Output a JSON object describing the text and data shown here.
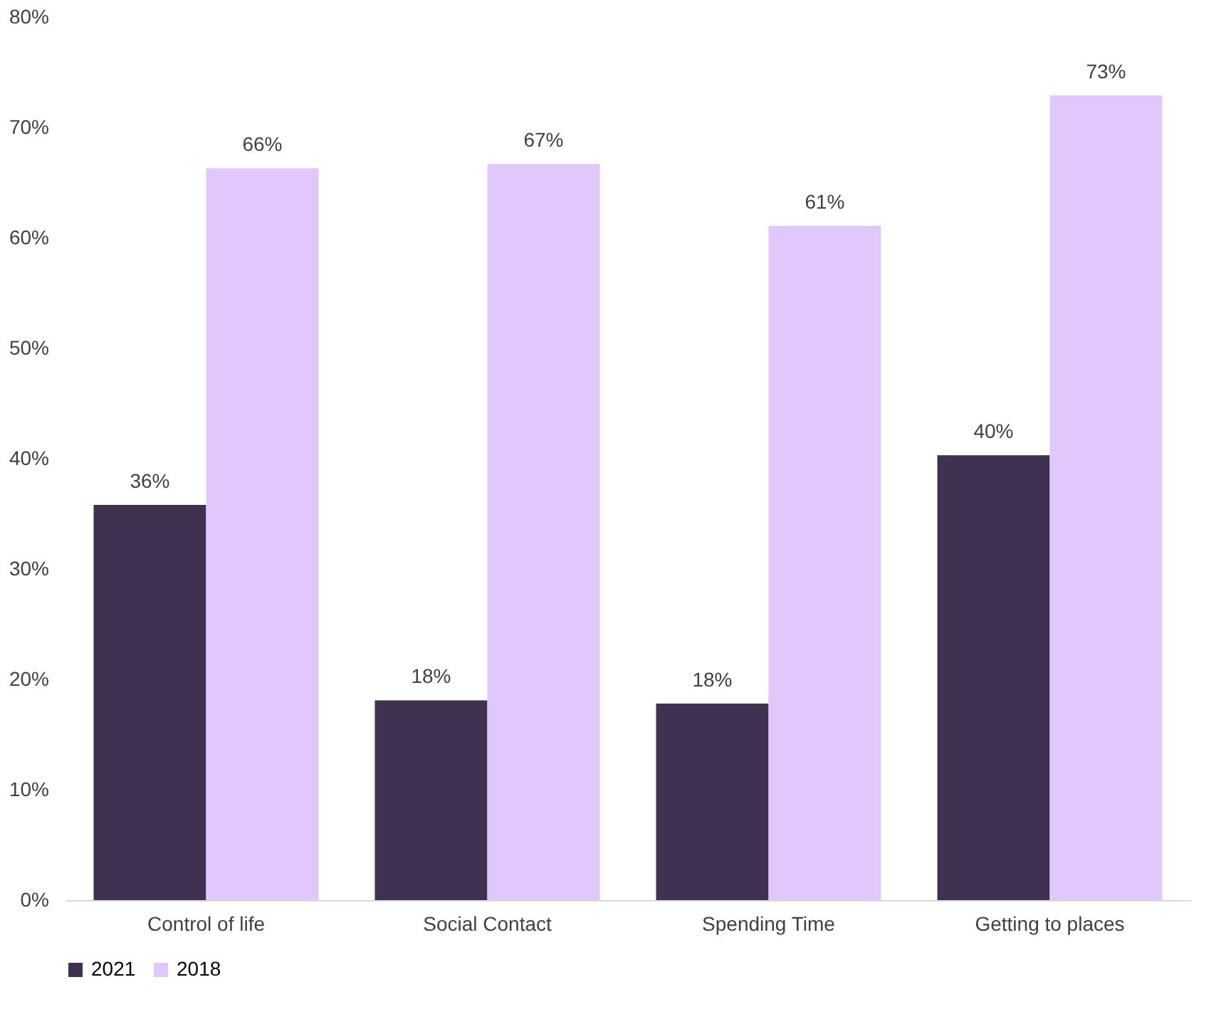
{
  "chart_data": {
    "type": "bar",
    "categories": [
      "Control of life",
      "Social Contact",
      "Spending Time",
      "Getting to places"
    ],
    "series": [
      {
        "name": "2021",
        "color": "#403151",
        "values": [
          35.8,
          18.1,
          17.8,
          40.3
        ],
        "value_labels": [
          "36%",
          "18%",
          "18%",
          "40%"
        ]
      },
      {
        "name": "2018",
        "color": "#e0c8fc",
        "values": [
          66.3,
          66.7,
          61.1,
          72.9
        ],
        "value_labels": [
          "66%",
          "67%",
          "61%",
          "73%"
        ]
      }
    ],
    "ylim": [
      0,
      80
    ],
    "yticks": [
      {
        "value": 0,
        "label": "0%"
      },
      {
        "value": 10,
        "label": "10%"
      },
      {
        "value": 20,
        "label": "20%"
      },
      {
        "value": 30,
        "label": "30%"
      },
      {
        "value": 40,
        "label": "40%"
      },
      {
        "value": 50,
        "label": "50%"
      },
      {
        "value": 60,
        "label": "60%"
      },
      {
        "value": 70,
        "label": "70%"
      },
      {
        "value": 80,
        "label": "80%"
      }
    ],
    "grid": false,
    "legend": "bottom"
  }
}
